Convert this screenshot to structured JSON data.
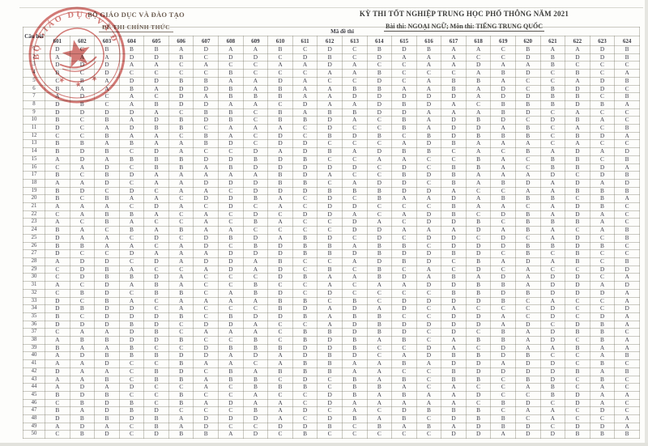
{
  "colors": {
    "stamp_red": "#bf3b36",
    "ink": "#3e3e4a",
    "header_brown": "#6e5f53"
  },
  "header": {
    "ministry_line1": "BỘ GIÁO DỤC VÀ ĐÀO TẠO",
    "ministry_line2": "ĐỀ THI CHÍNH THỨC",
    "exam_title": "KỲ THI TỐT NGHIỆP TRUNG HỌC PHỔ THÔNG NĂM 2021",
    "exam_subtitle": "Bài thi: NGOẠI NGỮ; Môn thi: TIẾNG TRUNG QUỐC"
  },
  "stamp": {
    "ring_text": "BỘ GIÁO DỤC VÀ ĐÀO TẠO",
    "center_symbol": "★"
  },
  "table": {
    "corner_label": "Câu hỏi",
    "group_label": "Mã đề thi",
    "codes": [
      "601",
      "602",
      "603",
      "604",
      "605",
      "606",
      "607",
      "608",
      "609",
      "610",
      "611",
      "612",
      "613",
      "614",
      "615",
      "616",
      "617",
      "618",
      "619",
      "620",
      "621",
      "622",
      "623",
      "624"
    ],
    "rows": [
      {
        "q": "1",
        "a": "DCBBBADAABCDCBDBAACBAADB"
      },
      {
        "q": "2",
        "a": "AAADDBCDDCDBCDAAACCDBDDB"
      },
      {
        "q": "3",
        "a": "DDDAACACCAADACCAADAABCCC"
      },
      {
        "q": "4",
        "a": "BCDCCCCBCCCAABCCCABDCBCA"
      },
      {
        "q": "5",
        "a": "CBADDBBAADACCDCABBACCADB"
      },
      {
        "q": "6",
        "a": "BAABADDBABAABBAABADCBDDC"
      },
      {
        "q": "7",
        "a": "ADCACDABBBAADDDDDADDBBCB"
      },
      {
        "q": "8",
        "a": "DBCABDDAACDAADBDACBBBDBA"
      },
      {
        "q": "9",
        "a": "DDDDACBBCBABBDDAAABDCACC"
      },
      {
        "q": "10",
        "a": "BCBADBDBCBBDACBADBDCDBAC"
      },
      {
        "q": "11",
        "a": "DCADBBCAAACDCCBADDABCACB"
      },
      {
        "q": "12",
        "a": "CCBAACBACDCBDBCBDBBBCBDA"
      },
      {
        "q": "13",
        "a": "BBABAABDCDDCCCADBAAACACC"
      },
      {
        "q": "14",
        "a": "BDBCDACCDADBADBBCACBADAD"
      },
      {
        "q": "15",
        "a": "ADABBBDDBDBCCAACCBACBBCB"
      },
      {
        "q": "16",
        "a": "CADCBBABDDDDDCDCBBACBBDA"
      },
      {
        "q": "17",
        "a": "BCBDAAAAABDACCBDBAAADCDB"
      },
      {
        "q": "18",
        "a": "AADCAADDDBBCADDCBABDADAD"
      },
      {
        "q": "19",
        "a": "BDCDCAACDDDBBBDDACCAABBB"
      },
      {
        "q": "20",
        "a": "BCBAACDDBACDCBAADABBBCBA"
      },
      {
        "q": "21",
        "a": "AAACDACDCACDDCCCBAACADBC"
      },
      {
        "q": "22",
        "a": "CABBACACDCDDACADBCDBADAC"
      },
      {
        "q": "23",
        "a": "ACBACCACBACCDACDDBCBBBAC"
      },
      {
        "q": "24",
        "a": "BACBABAACCCCDDAAADABACAB"
      },
      {
        "q": "25",
        "a": "DAACDCDBDABDCDCDDCDCADCB"
      },
      {
        "q": "26",
        "a": "BBAACADCBDBBABBCDDDBBDBC"
      },
      {
        "q": "27",
        "a": "DCCDAAADDDBBDBDDBDCBCBCC"
      },
      {
        "q": "28",
        "a": "ADDCDADDABCCADBDCBADABCB"
      },
      {
        "q": "29",
        "a": "CDBACCADADCBCBCACDCACCDD"
      },
      {
        "q": "30",
        "a": "CDBBDACCCDBAABDABADADDCA"
      },
      {
        "q": "31",
        "a": "ACDABACCBCCACAADDBBADDAD"
      },
      {
        "q": "32",
        "a": "CBDCBBCABDCDCCCCBBDBDDDA"
      },
      {
        "q": "33",
        "a": "DCBACAAAABBCBCDDDDBCACCA"
      },
      {
        "q": "34",
        "a": "DBDDCACCCBDADADCACCCDCCD"
      },
      {
        "q": "35",
        "a": "BCDDDBCBDDBABBCCDDACDCDA"
      },
      {
        "q": "36",
        "a": "DDDBDCDDACCADBDDDDADCDBA"
      },
      {
        "q": "37",
        "a": "CAADBCAAACBBDBDCDCBADBBC"
      },
      {
        "q": "38",
        "a": "ABBDDBCCBCBDBABCABBADCBA"
      },
      {
        "q": "39",
        "a": "BAABCCDBBBDDBCCDACDAABAA"
      },
      {
        "q": "40",
        "a": "ADBBBDDADADBDCADBBDBCCAB"
      },
      {
        "q": "41",
        "a": "AADCCBAACABBAABADDADDCBC"
      },
      {
        "q": "42",
        "a": "DAACBDCBABBBAACCBDDDDBAB"
      },
      {
        "q": "43",
        "a": "AABCBBABBCDCBABCBBCBDCBC"
      },
      {
        "q": "44",
        "a": "ADADCCACBBBCBBACACCABCAC"
      },
      {
        "q": "45",
        "a": "BDBCCBCCACCDBABAADCCBDAA"
      },
      {
        "q": "46",
        "a": "CBDBCBADAACDAAAAACBDCDAC"
      },
      {
        "q": "47",
        "a": "BADBDCCCBADCACDBBBCAACDC"
      },
      {
        "q": "48",
        "a": "DBBDBADDDACDBABCDBBCACCA"
      },
      {
        "q": "49",
        "a": "ADACBADCCDDBCBABADBDCDDA"
      },
      {
        "q": "50",
        "a": "CBDCDBBADCBCCCCCDDADDBBB"
      }
    ]
  }
}
